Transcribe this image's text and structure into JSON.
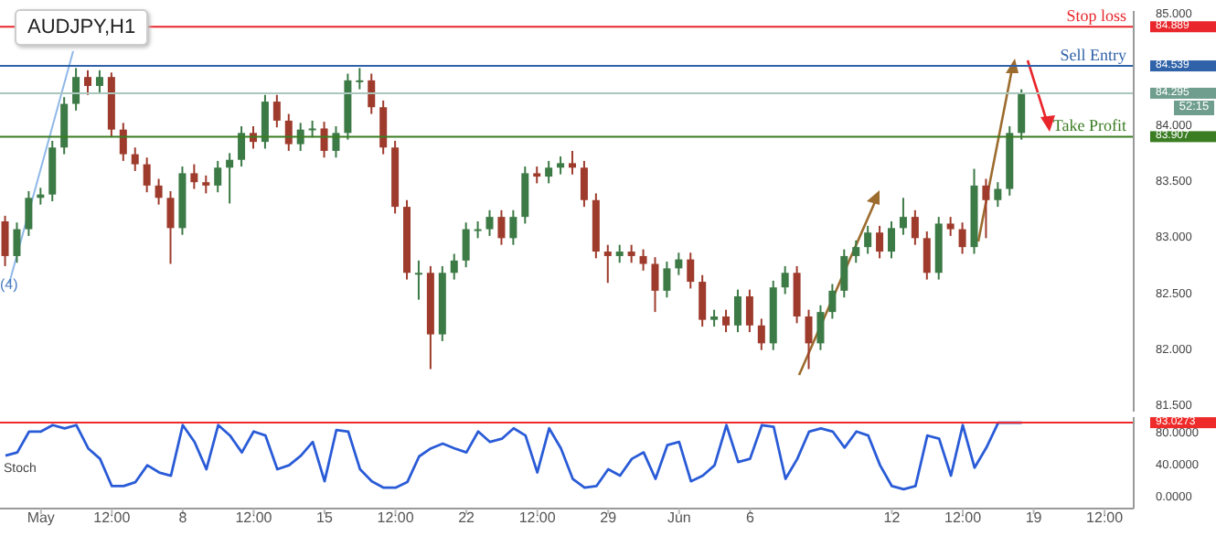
{
  "chart_data": [
    {
      "type": "candlestick",
      "title": "AUDJPY,H1",
      "colors": [
        "#9e3b2c",
        "#3c7a46",
        "#3c7a46",
        "#3c7a46",
        "#3c7a46",
        "#3c7a46",
        "#3c7a46",
        "#9e3b2c",
        "#3c7a46",
        "#9e3b2c",
        "#9e3b2c",
        "#9e3b2c",
        "#9e3b2c",
        "#9e3b2c",
        "#9e3b2c",
        "#3c7a46",
        "#9e3b2c",
        "#9e3b2c",
        "#3c7a46",
        "#3c7a46",
        "#3c7a46",
        "#9e3b2c",
        "#3c7a46",
        "#9e3b2c",
        "#9e3b2c",
        "#3c7a46",
        "#3c7a46",
        "#9e3b2c",
        "#3c7a46",
        "#3c7a46",
        "#3c7a46",
        "#9e3b2c",
        "#9e3b2c",
        "#9e3b2c",
        "#9e3b2c",
        "#3c7a46",
        "#9e3b2c",
        "#3c7a46",
        "#3c7a46",
        "#3c7a46",
        "#3c7a46",
        "#3c7a46",
        "#9e3b2c",
        "#3c7a46",
        "#3c7a46",
        "#9e3b2c",
        "#3c7a46",
        "#3c7a46",
        "#9e3b2c",
        "#9e3b2c",
        "#9e3b2c",
        "#9e3b2c",
        "#3c7a46",
        "#9e3b2c",
        "#9e3b2c",
        "#9e3b2c",
        "#3c7a46",
        "#3c7a46",
        "#9e3b2c",
        "#9e3b2c",
        "#3c7a46",
        "#9e3b2c",
        "#3c7a46",
        "#9e3b2c",
        "#9e3b2c",
        "#3c7a46",
        "#3c7a46",
        "#9e3b2c",
        "#9e3b2c",
        "#3c7a46",
        "#3c7a46",
        "#3c7a46",
        "#3c7a46",
        "#3c7a46",
        "#9e3b2c",
        "#3c7a46",
        "#3c7a46",
        "#9e3b2c",
        "#9e3b2c",
        "#3c7a46",
        "#9e3b2c",
        "#9e3b2c",
        "#3c7a46",
        "#9e3b2c",
        "#3c7a46",
        "#3c7a46",
        "#3c7a46",
        null,
        null,
        null,
        null,
        null,
        null,
        null,
        null,
        null
      ],
      "categories": [
        null,
        null,
        null,
        null,
        null,
        null,
        null,
        null,
        null,
        null,
        null,
        null,
        null,
        null,
        null,
        null,
        null,
        null,
        null,
        null,
        null,
        null,
        null,
        null,
        null,
        null,
        null,
        null,
        null,
        null,
        null,
        null,
        null,
        null,
        null,
        null,
        null,
        null,
        null,
        null,
        null,
        null,
        null,
        null,
        null,
        null,
        null,
        null,
        null,
        null,
        null,
        null,
        null,
        null,
        null,
        null,
        null,
        null,
        null,
        null,
        null,
        null,
        null,
        null,
        null,
        null,
        null,
        null,
        null,
        null,
        null,
        null,
        null,
        null,
        null,
        null,
        null,
        null,
        null,
        null,
        null,
        null,
        null,
        null,
        null,
        null,
        null,
        null,
        null,
        null,
        null,
        null,
        null,
        null,
        null,
        null
      ],
      "ohlc": [
        [
          83.15,
          83.2,
          82.75,
          82.84
        ],
        [
          82.84,
          83.14,
          82.78,
          83.08
        ],
        [
          83.08,
          83.42,
          83.02,
          83.36
        ],
        [
          83.36,
          83.45,
          83.3,
          83.39
        ],
        [
          83.39,
          83.87,
          83.33,
          83.81
        ],
        [
          83.81,
          84.26,
          83.75,
          84.2
        ],
        [
          84.2,
          84.52,
          84.14,
          84.44
        ],
        [
          84.44,
          84.5,
          84.28,
          84.36
        ],
        [
          84.36,
          84.5,
          84.3,
          84.44
        ],
        [
          84.44,
          84.48,
          83.91,
          83.97
        ],
        [
          83.97,
          84.03,
          83.69,
          83.75
        ],
        [
          83.75,
          83.81,
          83.6,
          83.66
        ],
        [
          83.66,
          83.72,
          83.41,
          83.47
        ],
        [
          83.47,
          83.53,
          83.3,
          83.36
        ],
        [
          83.36,
          83.42,
          82.77,
          83.09
        ],
        [
          83.09,
          83.64,
          83.03,
          83.58
        ],
        [
          83.58,
          83.66,
          83.44,
          83.5
        ],
        [
          83.5,
          83.56,
          83.4,
          83.47
        ],
        [
          83.47,
          83.69,
          83.41,
          83.63
        ],
        [
          83.63,
          83.76,
          83.31,
          83.7
        ],
        [
          83.7,
          84.0,
          83.64,
          83.94
        ],
        [
          83.94,
          84.0,
          83.8,
          83.86
        ],
        [
          83.86,
          84.28,
          83.8,
          84.22
        ],
        [
          84.22,
          84.28,
          83.99,
          84.05
        ],
        [
          84.05,
          84.11,
          83.78,
          83.84
        ],
        [
          83.84,
          84.03,
          83.78,
          83.97
        ],
        [
          83.97,
          84.05,
          83.9,
          83.98
        ],
        [
          83.98,
          84.04,
          83.72,
          83.78
        ],
        [
          83.78,
          84.0,
          83.72,
          83.94
        ],
        [
          83.94,
          84.47,
          83.88,
          84.41
        ],
        [
          84.41,
          84.52,
          84.33,
          84.41
        ],
        [
          84.41,
          84.47,
          84.11,
          84.17
        ],
        [
          84.17,
          84.23,
          83.75,
          83.81
        ],
        [
          83.81,
          83.87,
          83.22,
          83.28
        ],
        [
          83.28,
          83.34,
          82.63,
          82.69
        ],
        [
          82.69,
          82.8,
          82.45,
          82.69
        ],
        [
          82.69,
          82.75,
          81.83,
          82.14
        ],
        [
          82.14,
          82.75,
          82.08,
          82.69
        ],
        [
          82.69,
          82.86,
          82.63,
          82.8
        ],
        [
          82.8,
          83.14,
          82.74,
          83.08
        ],
        [
          83.08,
          83.15,
          83.0,
          83.08
        ],
        [
          83.08,
          83.25,
          83.02,
          83.19
        ],
        [
          83.19,
          83.25,
          82.94,
          83.0
        ],
        [
          83.0,
          83.25,
          82.94,
          83.19
        ],
        [
          83.19,
          83.64,
          83.13,
          83.58
        ],
        [
          83.58,
          83.64,
          83.49,
          83.55
        ],
        [
          83.55,
          83.69,
          83.49,
          83.63
        ],
        [
          83.63,
          83.73,
          83.57,
          83.67
        ],
        [
          83.67,
          83.78,
          83.57,
          83.63
        ],
        [
          83.63,
          83.69,
          83.28,
          83.34
        ],
        [
          83.34,
          83.4,
          82.82,
          82.88
        ],
        [
          82.88,
          82.94,
          82.6,
          82.84
        ],
        [
          82.84,
          82.94,
          82.78,
          82.88
        ],
        [
          82.88,
          82.94,
          82.78,
          82.84
        ],
        [
          82.84,
          82.9,
          82.71,
          82.77
        ],
        [
          82.77,
          82.83,
          82.34,
          82.53
        ],
        [
          82.53,
          82.79,
          82.47,
          82.73
        ],
        [
          82.73,
          82.87,
          82.67,
          82.81
        ],
        [
          82.81,
          82.87,
          82.55,
          82.61
        ],
        [
          82.61,
          82.67,
          82.21,
          82.27
        ],
        [
          82.27,
          82.36,
          82.21,
          82.3
        ],
        [
          82.3,
          82.36,
          82.16,
          82.22
        ],
        [
          82.22,
          82.54,
          82.16,
          82.48
        ],
        [
          82.48,
          82.54,
          82.16,
          82.22
        ],
        [
          82.22,
          82.28,
          82.0,
          82.06
        ],
        [
          82.06,
          82.62,
          82.0,
          82.56
        ],
        [
          82.56,
          82.75,
          82.5,
          82.69
        ],
        [
          82.69,
          82.75,
          82.24,
          82.3
        ],
        [
          82.3,
          82.36,
          81.83,
          82.06
        ],
        [
          82.06,
          82.4,
          82.0,
          82.34
        ],
        [
          82.34,
          82.59,
          82.28,
          82.53
        ],
        [
          82.53,
          82.9,
          82.47,
          82.84
        ],
        [
          82.84,
          82.98,
          82.78,
          82.92
        ],
        [
          82.92,
          83.11,
          82.86,
          83.05
        ],
        [
          83.05,
          83.11,
          82.82,
          82.88
        ],
        [
          82.88,
          83.15,
          82.82,
          83.09
        ],
        [
          83.09,
          83.36,
          83.03,
          83.19
        ],
        [
          83.19,
          83.25,
          82.94,
          83.0
        ],
        [
          83.0,
          83.06,
          82.63,
          82.69
        ],
        [
          82.69,
          83.19,
          82.63,
          83.13
        ],
        [
          83.13,
          83.19,
          83.02,
          83.08
        ],
        [
          83.08,
          83.14,
          82.86,
          82.92
        ],
        [
          82.92,
          83.62,
          82.86,
          83.47
        ],
        [
          83.47,
          83.53,
          83.0,
          83.34
        ],
        [
          83.34,
          83.5,
          83.28,
          83.44
        ],
        [
          83.44,
          84.0,
          83.38,
          83.94
        ],
        [
          83.94,
          84.33,
          83.88,
          84.295
        ],
        null,
        null,
        null,
        null,
        null,
        null,
        null,
        null,
        null
      ],
      "ylim": [
        81.45,
        85.03
      ],
      "yticks": [
        {
          "value": 81.5,
          "label": "81.500"
        },
        {
          "value": 82,
          "label": "82.000"
        },
        {
          "value": 82.5,
          "label": "82.500"
        },
        {
          "value": 83,
          "label": "83.000"
        },
        {
          "value": 83.5,
          "label": "83.500"
        },
        {
          "value": 83.907,
          "label": "83.907"
        },
        {
          "value": 84,
          "label": "84.000"
        },
        {
          "value": 84.295,
          "label": "84.295"
        },
        {
          "value": 84.539,
          "label": "84.539"
        },
        {
          "value": 84.889,
          "label": "84.889"
        },
        {
          "value": 85,
          "label": "85.000"
        }
      ],
      "tick_labels": "y",
      "ref_lines": [
        {
          "axis": "y",
          "value": 84.889,
          "label": "Stop loss",
          "color": "#e8262b"
        },
        {
          "axis": "y",
          "value": 84.539,
          "label": "Sell Entry",
          "color": "#2f62a8"
        },
        {
          "axis": "y",
          "value": 84.295,
          "label": null,
          "color": "#a9c7bd"
        },
        {
          "axis": "y",
          "value": 83.907,
          "label": "Take Profit",
          "color": "#3b7d23"
        }
      ],
      "annotations": [
        {
          "text": "(4)",
          "y": 82.84
        },
        "52:15"
      ]
    },
    {
      "type": "line",
      "title": "Stoch",
      "categories": [
        null,
        null,
        null,
        "May",
        null,
        null,
        null,
        null,
        null,
        "12:00",
        null,
        null,
        null,
        null,
        null,
        "8",
        null,
        null,
        null,
        null,
        null,
        "12:00",
        null,
        null,
        null,
        null,
        null,
        "15",
        null,
        null,
        null,
        null,
        null,
        "12:00",
        null,
        null,
        null,
        null,
        null,
        "22",
        null,
        null,
        null,
        null,
        null,
        "12:00",
        null,
        null,
        null,
        null,
        null,
        "29",
        null,
        null,
        null,
        null,
        null,
        "Jun",
        null,
        null,
        null,
        null,
        null,
        "6",
        null,
        null,
        null,
        null,
        null,
        null,
        null,
        null,
        null,
        null,
        null,
        "12",
        null,
        null,
        null,
        null,
        null,
        "12:00",
        null,
        null,
        null,
        null,
        null,
        "19",
        null,
        null,
        null,
        null,
        null,
        "12:00",
        null,
        null
      ],
      "series": [
        {
          "color": "#2a5bd7",
          "values": [
            52,
            56,
            82,
            82,
            90,
            86,
            90,
            61,
            48,
            14,
            14,
            19,
            40,
            31,
            27,
            90,
            69,
            35,
            90,
            77,
            56,
            82,
            77,
            35,
            40,
            52,
            69,
            20,
            84,
            82,
            35,
            20,
            12,
            12,
            19,
            51,
            61,
            67,
            61,
            56,
            82,
            69,
            73,
            86,
            77,
            31,
            86,
            61,
            23,
            12,
            14,
            35,
            27,
            48,
            56,
            23,
            65,
            69,
            20,
            27,
            40,
            90,
            44,
            48,
            90,
            88,
            23,
            48,
            82,
            86,
            82,
            62,
            82,
            77,
            40,
            14,
            10,
            14,
            77,
            73,
            27,
            90,
            37,
            62,
            93,
            93,
            93,
            null,
            null,
            null,
            null,
            null,
            null,
            null,
            null,
            null
          ]
        }
      ],
      "ylim": [
        -14,
        100
      ],
      "yticks": [
        {
          "value": 0,
          "label": "0.0000"
        },
        {
          "value": 40,
          "label": "40.0000"
        },
        {
          "value": 80,
          "label": "80.0000"
        },
        {
          "value": 93.0273,
          "label": "93.0273"
        }
      ],
      "ref_lines": [
        {
          "axis": "y",
          "value": 93.0273,
          "label": null,
          "color": "#ee2a2a"
        }
      ]
    }
  ]
}
